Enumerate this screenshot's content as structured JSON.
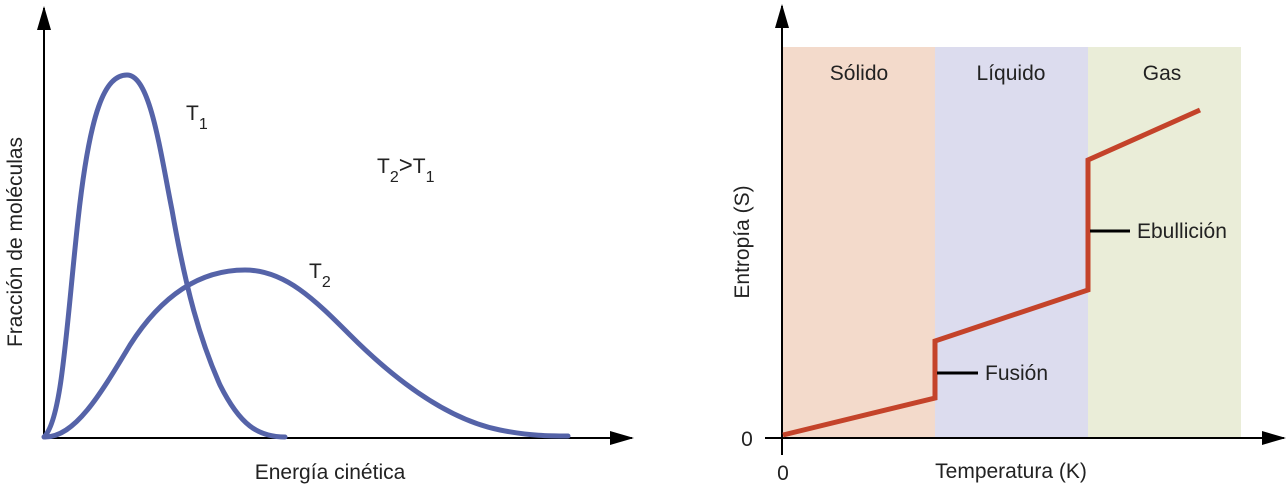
{
  "left_chart": {
    "xlabel": "Energía cinética",
    "ylabel": "Fracción de moléculas",
    "series": [
      {
        "name": "T",
        "subscript": "1"
      },
      {
        "name": "T",
        "subscript": "2"
      }
    ],
    "annotation": {
      "a": "T",
      "a_sub": "2",
      "op": ">",
      "b": "T",
      "b_sub": "1"
    },
    "curve_color": "#5563a8"
  },
  "right_chart": {
    "xlabel": "Temperatura (K)",
    "ylabel": "Entropía (S)",
    "x_origin_label": "0",
    "y_origin_label": "0",
    "regions": [
      {
        "label": "Sólido",
        "color": "#f3dacb"
      },
      {
        "label": "Líquido",
        "color": "#dcdcee"
      },
      {
        "label": "Gas",
        "color": "#eaedd8"
      }
    ],
    "transitions": [
      {
        "label": "Fusión"
      },
      {
        "label": "Ebullición"
      }
    ],
    "line_color": "#c4432a"
  }
}
